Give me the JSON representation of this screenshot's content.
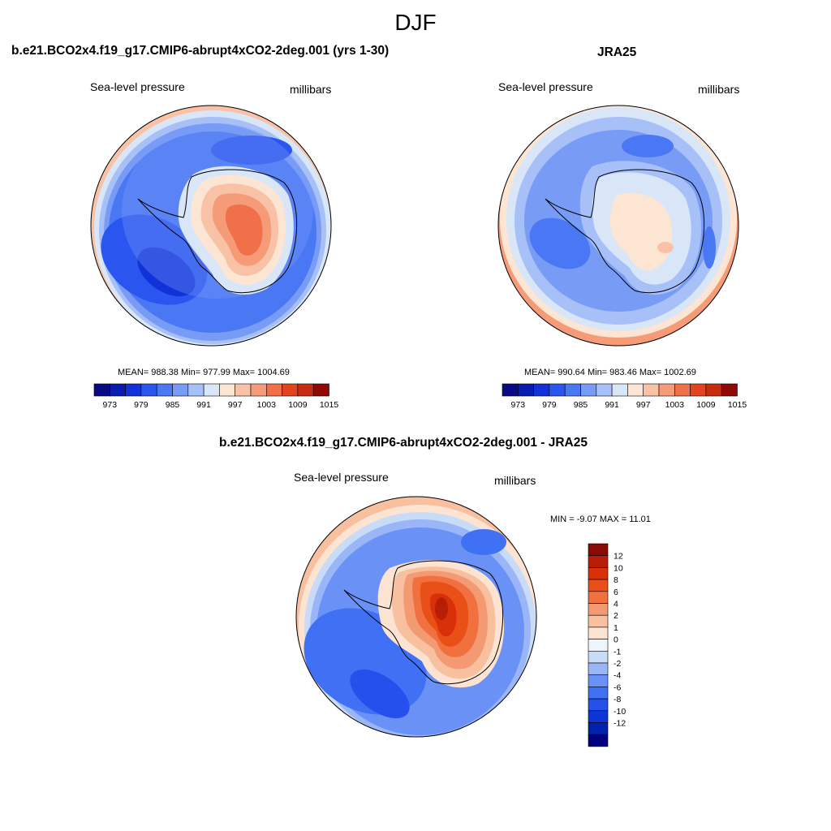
{
  "figure": {
    "title": "DJF",
    "colors": {
      "slp_palette": [
        "#0a0a82",
        "#0a1bb0",
        "#1132d8",
        "#2a55ee",
        "#4a78f4",
        "#789cf6",
        "#a8c0f8",
        "#d8e6f8",
        "#fde5d4",
        "#f9c2a6",
        "#f59b78",
        "#f0704a",
        "#e34420",
        "#c82c10",
        "#8f0a06"
      ],
      "diff_palette": [
        "#000080",
        "#0020b0",
        "#0d34d4",
        "#2550ec",
        "#4070f4",
        "#6a92f6",
        "#9ab6f8",
        "#c8dcf8",
        "#eef4fc",
        "#fde3d2",
        "#f9c0a0",
        "#f49a72",
        "#f07040",
        "#e85018",
        "#d83008",
        "#b81e06",
        "#8a0a04"
      ]
    },
    "panels": [
      {
        "id": "model",
        "title": "b.e21.BCO2x4.f19_g17.CMIP6-abrupt4xCO2-2deg.001 (yrs 1-30)",
        "left_label": "Sea-level pressure",
        "right_label": "millibars",
        "stats": "MEAN= 988.38  Min= 977.99  Max= 1004.69",
        "colorbar_ticks": [
          "973",
          "979",
          "985",
          "991",
          "997",
          "1003",
          "1009",
          "1015"
        ]
      },
      {
        "id": "obs",
        "title": "JRA25",
        "left_label": "Sea-level pressure",
        "right_label": "millibars",
        "stats": "MEAN= 990.64  Min= 983.46  Max= 1002.69",
        "colorbar_ticks": [
          "973",
          "979",
          "985",
          "991",
          "997",
          "1003",
          "1009",
          "1015"
        ]
      },
      {
        "id": "diff",
        "title": "b.e21.BCO2x4.f19_g17.CMIP6-abrupt4xCO2-2deg.001 - JRA25",
        "left_label": "Sea-level pressure",
        "right_label": "millibars",
        "stats": "MIN =  -9.07 MAX =  11.01",
        "colorbar_ticks": [
          "12",
          "10",
          "8",
          "6",
          "4",
          "2",
          "1",
          "0",
          "-1",
          "-2",
          "-4",
          "-6",
          "-8",
          "-10",
          "-12"
        ]
      }
    ]
  }
}
